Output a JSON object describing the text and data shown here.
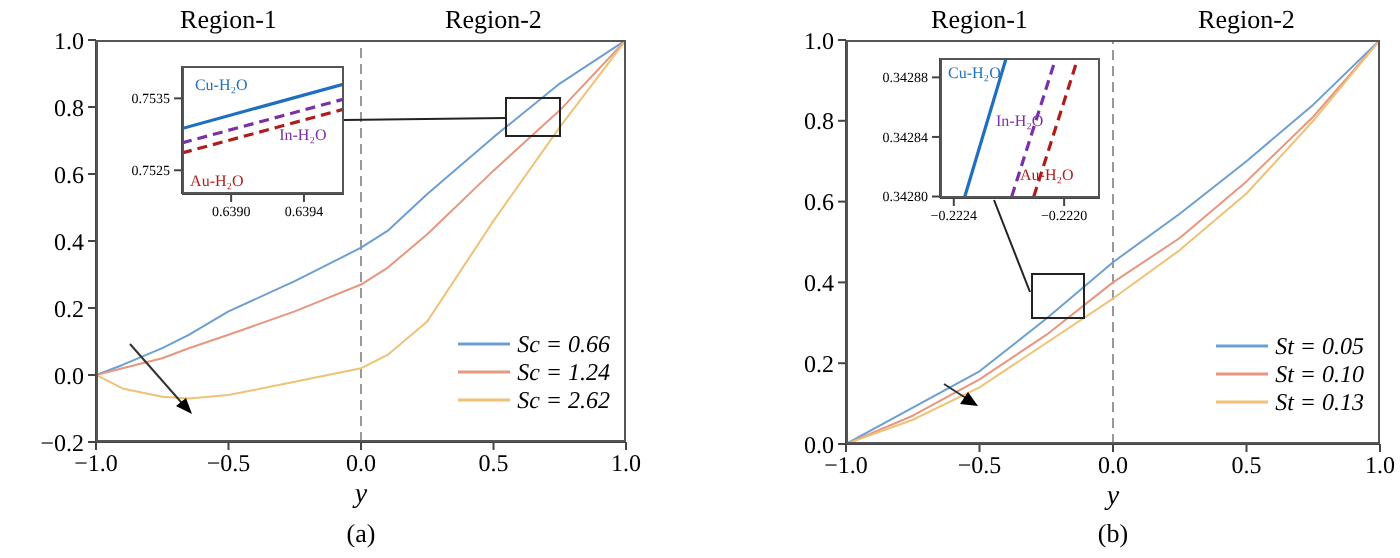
{
  "chart_data": [
    {
      "type": "line",
      "xlabel": "y",
      "annotations": [
        "Region-1",
        "Region-2",
        "(a)"
      ],
      "x": [
        -1,
        -0.9,
        -0.75,
        -0.65,
        -0.5,
        -0.25,
        0,
        0.1,
        0.25,
        0.5,
        0.75,
        1
      ],
      "series": [
        {
          "name": "Sc = 0.66",
          "color": "#6d9fd2",
          "values": [
            0,
            0.03,
            0.08,
            0.12,
            0.19,
            0.28,
            0.38,
            0.43,
            0.54,
            0.71,
            0.87,
            1
          ]
        },
        {
          "name": "Sc = 1.24",
          "color": "#e8967f",
          "values": [
            0,
            0.02,
            0.05,
            0.08,
            0.12,
            0.19,
            0.27,
            0.32,
            0.42,
            0.61,
            0.79,
            1
          ]
        },
        {
          "name": "Sc = 2.62",
          "color": "#eec277",
          "values": [
            0,
            -0.04,
            -0.065,
            -0.07,
            -0.06,
            -0.02,
            0.02,
            0.06,
            0.16,
            0.46,
            0.74,
            1
          ]
        }
      ],
      "xlim": [
        -1,
        1
      ],
      "ylim": [
        -0.2,
        1
      ],
      "xticks": [
        {
          "value": -1,
          "label": "−1.0"
        },
        {
          "value": -0.5,
          "label": "−0.5"
        },
        {
          "value": 0,
          "label": "0.0"
        },
        {
          "value": 0.5,
          "label": "0.5"
        },
        {
          "value": 1,
          "label": "1.0"
        }
      ],
      "yticks": [
        {
          "value": -0.2,
          "label": "−0.2"
        },
        {
          "value": 0,
          "label": "0.0"
        },
        {
          "value": 0.2,
          "label": "0.2"
        },
        {
          "value": 0.4,
          "label": "0.4"
        },
        {
          "value": 0.6,
          "label": "0.6"
        },
        {
          "value": 0.8,
          "label": "0.8"
        },
        {
          "value": 1,
          "label": "1.0"
        }
      ],
      "ref_lines": [
        {
          "axis": "x",
          "value": 0,
          "color": "#999999",
          "line_style": "dashed"
        }
      ],
      "grid": false,
      "legend": "bottom right",
      "marker": "none",
      "line_style": "solid"
    },
    {
      "type": "line",
      "x": [
        0.63873,
        0.63962
      ],
      "series": [
        {
          "name": "Cu-H₂O",
          "color": "#1f6fc0",
          "values": [
            0.75308,
            0.7537
          ],
          "line_style": "solid"
        },
        {
          "name": "In-H₂O",
          "color": "#7b2fa8",
          "values": [
            0.75288,
            0.75349
          ],
          "line_style": "dashed"
        },
        {
          "name": "Au-H₂O",
          "color": "#b01c1c",
          "values": [
            0.75274,
            0.75335
          ],
          "line_style": "dashed"
        }
      ],
      "xlim": [
        0.63873,
        0.63962
      ],
      "ylim": [
        0.75217,
        0.75395
      ],
      "xticks": [
        {
          "value": 0.639,
          "label": "0.6390"
        },
        0.6394
      ],
      "yticks": [
        0.7525,
        0.7535
      ],
      "grid": false,
      "legend": false,
      "marker": "none"
    },
    {
      "type": "line",
      "xlabel": "y",
      "annotations": [
        "Region-1",
        "Region-2",
        "(b)"
      ],
      "x": [
        -1,
        -0.75,
        -0.5,
        -0.25,
        0,
        0.25,
        0.5,
        0.75,
        1
      ],
      "series": [
        {
          "name": "St = 0.05",
          "color": "#6d9fd2",
          "values": [
            0,
            0.09,
            0.18,
            0.31,
            0.45,
            0.57,
            0.7,
            0.84,
            1
          ]
        },
        {
          "name": "St = 0.10",
          "color": "#e8967f",
          "values": [
            0,
            0.07,
            0.16,
            0.27,
            0.4,
            0.51,
            0.65,
            0.81,
            1
          ]
        },
        {
          "name": "St = 0.13",
          "color": "#eec277",
          "values": [
            0,
            0.06,
            0.14,
            0.25,
            0.36,
            0.48,
            0.62,
            0.8,
            1
          ]
        }
      ],
      "xlim": [
        -1,
        1
      ],
      "ylim": [
        0,
        1
      ],
      "xticks": [
        {
          "value": -1,
          "label": "−1.0"
        },
        {
          "value": -0.5,
          "label": "−0.5"
        },
        {
          "value": 0,
          "label": "0.0"
        },
        {
          "value": 0.5,
          "label": "0.5"
        },
        {
          "value": 1,
          "label": "1.0"
        }
      ],
      "yticks": [
        {
          "value": 0,
          "label": "0.0"
        },
        {
          "value": 0.2,
          "label": "0.2"
        },
        {
          "value": 0.4,
          "label": "0.4"
        },
        {
          "value": 0.6,
          "label": "0.6"
        },
        {
          "value": 0.8,
          "label": "0.8"
        },
        {
          "value": 1,
          "label": "1.0"
        }
      ],
      "ref_lines": [
        {
          "axis": "x",
          "value": 0,
          "color": "#999999",
          "line_style": "dashed"
        }
      ],
      "grid": false,
      "legend": "bottom right",
      "marker": "none",
      "line_style": "solid"
    },
    {
      "type": "line",
      "series": [
        {
          "name": "Cu-H₂O",
          "color": "#1f6fc0",
          "x": [
            -0.22236,
            -0.22221
          ],
          "values": [
            0.3428,
            0.342893
          ],
          "line_style": "solid"
        },
        {
          "name": "In-H₂O",
          "color": "#7b2fa8",
          "x": [
            -0.22219,
            -0.22203
          ],
          "values": [
            0.3428,
            0.342893
          ],
          "line_style": "dashed"
        },
        {
          "name": "Au-H₂O",
          "color": "#b01c1c",
          "x": [
            -0.22211,
            -0.22195
          ],
          "values": [
            0.3428,
            0.342893
          ],
          "line_style": "dashed"
        }
      ],
      "xlim": [
        -0.22245,
        -0.22187
      ],
      "ylim": [
        0.342799,
        0.342893
      ],
      "xticks": [
        {
          "value": -0.2224,
          "label": "−0.2224"
        },
        {
          "value": -0.222,
          "label": "−0.2220"
        }
      ],
      "yticks": [
        {
          "value": 0.3428,
          "label": "0.34280"
        },
        0.34284,
        0.34288
      ],
      "grid": false,
      "legend": false,
      "marker": "none"
    }
  ]
}
